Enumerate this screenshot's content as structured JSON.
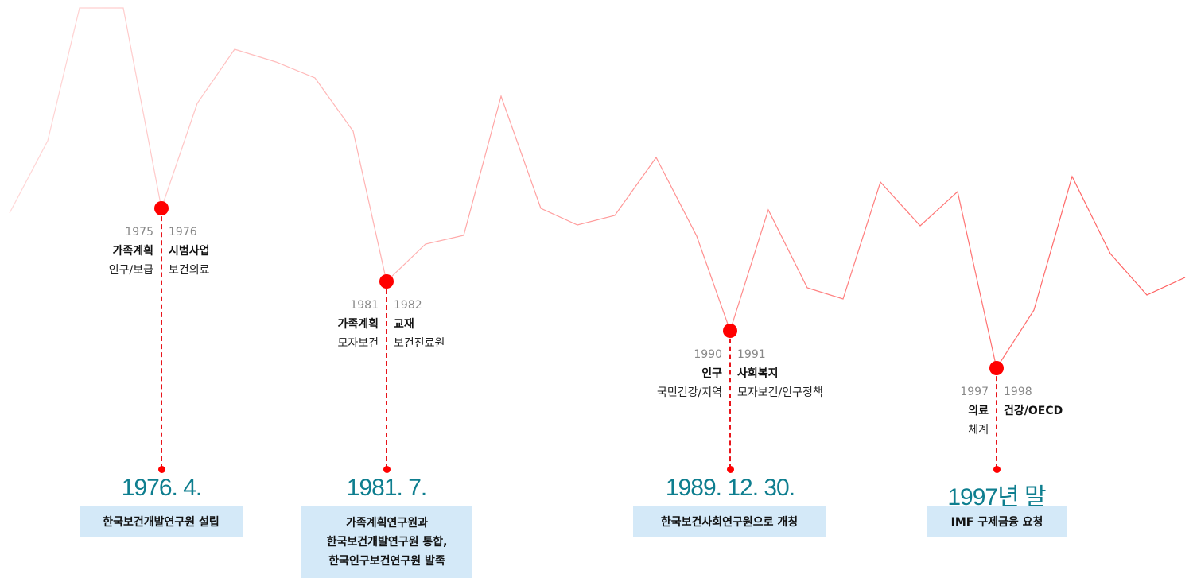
{
  "line_color": "#ff4d4d",
  "accent_teal": "#0e7e8f",
  "box_color": "#d4e9f8",
  "milestones": [
    {
      "left": {
        "year": "1975",
        "title": "가족계획",
        "sub": "인구/보급"
      },
      "right": {
        "year": "1976",
        "title": "시범사업",
        "sub": "보건의료"
      },
      "date": "1976. 4.",
      "desc": [
        "한국보건개발연구원 설립"
      ]
    },
    {
      "left": {
        "year": "1981",
        "title": "가족계획",
        "sub": "모자보건"
      },
      "right": {
        "year": "1982",
        "title": "교재",
        "sub": "보건진료원"
      },
      "date": "1981. 7.",
      "desc": [
        "가족계획연구원과",
        "한국보건개발연구원 통합,",
        "한국인구보건연구원 발족"
      ]
    },
    {
      "left": {
        "year": "1990",
        "title": "인구",
        "sub": "국민건강/지역"
      },
      "right": {
        "year": "1991",
        "title": "사회복지",
        "sub": "모자보건/인구정책"
      },
      "date": "1989. 12. 30.",
      "desc": [
        "한국보건사회연구원으로 개칭"
      ]
    },
    {
      "left": {
        "year": "1997",
        "title": "의료",
        "sub": "체계"
      },
      "right": {
        "year": "1998",
        "title": "건강/OECD",
        "sub": ""
      },
      "date": "1997년 말",
      "desc": [
        "IMF 구제금융 요청"
      ]
    }
  ]
}
